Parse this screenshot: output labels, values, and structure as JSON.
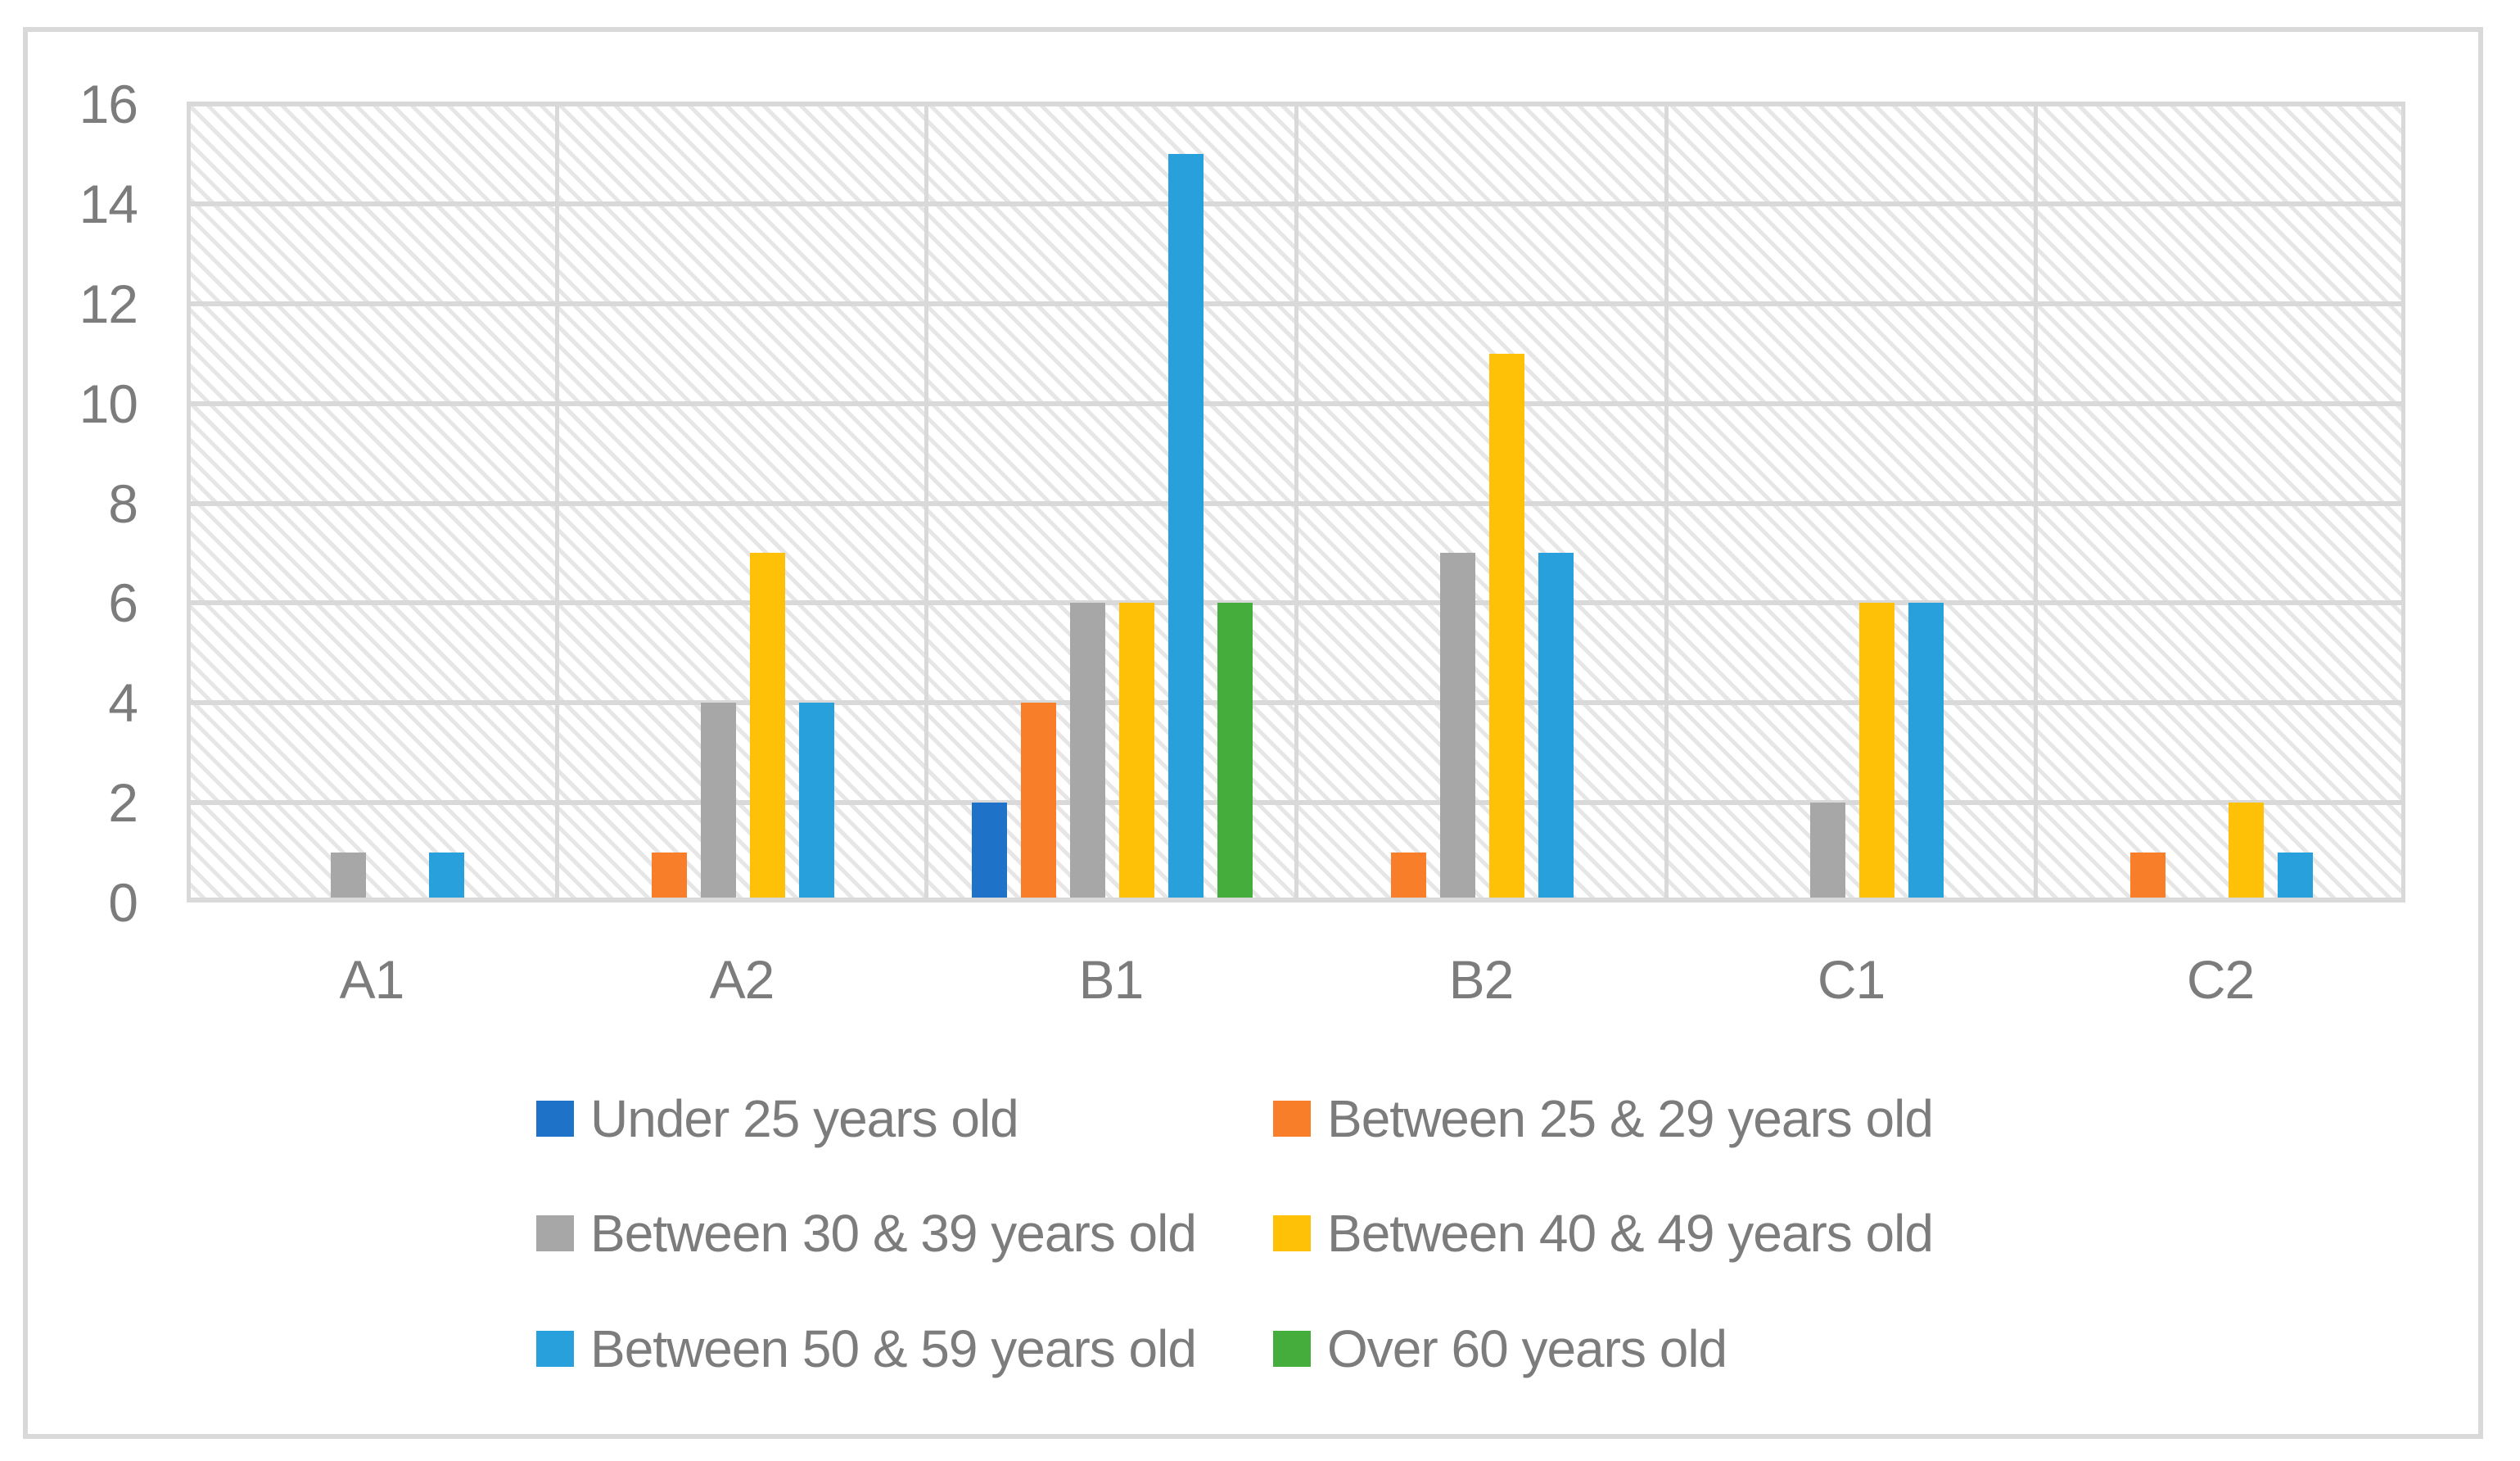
{
  "chart_data": {
    "type": "bar",
    "categories": [
      "A1",
      "A2",
      "B1",
      "B2",
      "C1",
      "C2"
    ],
    "series": [
      {
        "name": "Under 25 years old",
        "color": "#1E73C8",
        "values": [
          0,
          0,
          2,
          0,
          0,
          0
        ]
      },
      {
        "name": "Between 25 & 29 years old",
        "color": "#F87E2A",
        "values": [
          0,
          1,
          4,
          1,
          0,
          1
        ]
      },
      {
        "name": "Between 30 & 39 years old",
        "color": "#A7A7A7",
        "values": [
          1,
          4,
          6,
          7,
          2,
          0
        ]
      },
      {
        "name": "Between 40 & 49 years old",
        "color": "#FFC008",
        "values": [
          0,
          7,
          6,
          11,
          6,
          2
        ]
      },
      {
        "name": "Between 50 & 59 years old",
        "color": "#27A0DB",
        "values": [
          1,
          4,
          15,
          7,
          6,
          1
        ]
      },
      {
        "name": "Over 60 years old",
        "color": "#45AD3B",
        "values": [
          0,
          0,
          6,
          0,
          0,
          0
        ]
      }
    ],
    "title": "",
    "xlabel": "",
    "ylabel": "",
    "ylim": [
      0,
      16
    ],
    "yticks": [
      0,
      2,
      4,
      6,
      8,
      10,
      12,
      14,
      16
    ],
    "grid": true,
    "plot_background": "diagonal-hatch",
    "legend_position": "bottom",
    "colors": {
      "gridline": "#D9D9D9",
      "axis_text": "#7C7C7C",
      "hatch": "#E6E6E6",
      "chart_border": "#D9D9D9",
      "background": "#FFFFFF"
    }
  }
}
